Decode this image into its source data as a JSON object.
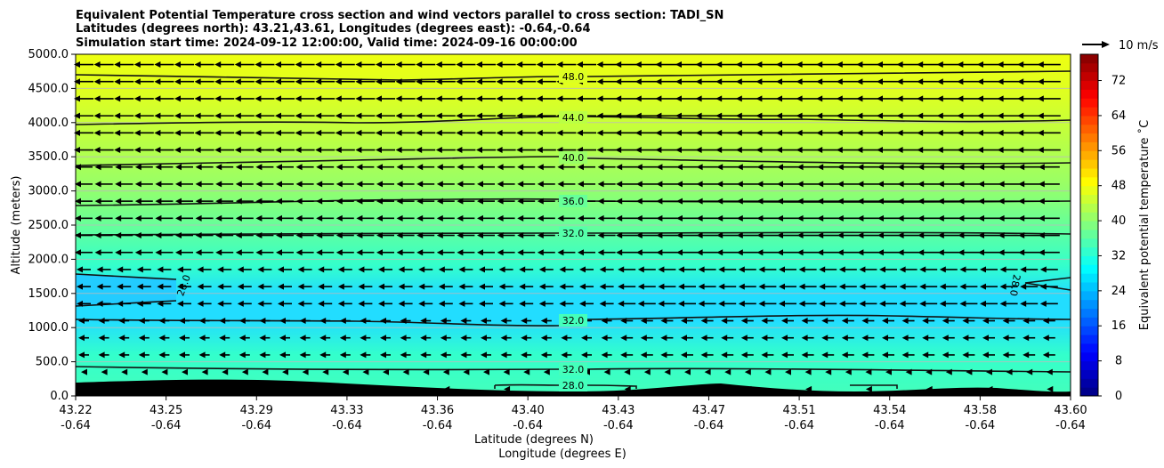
{
  "title_lines": [
    "Equivalent Potential Temperature cross section and wind vectors parallel to cross section: TADI_SN",
    "Latitudes (degrees north): 43.21,43.61, Longitudes (degrees east): -0.64,-0.64",
    "Simulation start time: 2024-09-12 12:00:00, Valid time: 2024-09-16 00:00:00"
  ],
  "quiver_key": "10 m/s",
  "colorbar_label": "Equivalent potential temperature ˚C",
  "xlabel_line1": "Latitude (degrees N)",
  "xlabel_line2": "Longitude (degrees E)",
  "ylabel": "Altitude (meters)",
  "chart_data": {
    "type": "contour",
    "y_ticks": [
      "0.0",
      "500.0",
      "1000.0",
      "1500.0",
      "2000.0",
      "2500.0",
      "3000.0",
      "3500.0",
      "4000.0",
      "4500.0",
      "5000.0"
    ],
    "ylim": [
      0,
      5000
    ],
    "x_tick_lat": [
      "43.22",
      "43.25",
      "43.29",
      "43.33",
      "43.36",
      "43.40",
      "43.43",
      "43.47",
      "43.51",
      "43.54",
      "43.58",
      "43.60"
    ],
    "x_tick_lon": [
      "-0.64",
      "-0.64",
      "-0.64",
      "-0.64",
      "-0.64",
      "-0.64",
      "-0.64",
      "-0.64",
      "-0.64",
      "-0.64",
      "-0.64",
      "-0.64"
    ],
    "colorbar_ticks": [
      "0",
      "8",
      "16",
      "24",
      "32",
      "40",
      "48",
      "56",
      "64",
      "72"
    ],
    "colorbar_range": [
      0,
      78
    ],
    "colormap": "jet",
    "contour_labels": [
      {
        "text": "48.0"
      },
      {
        "text": "44.0"
      },
      {
        "text": "40.0"
      },
      {
        "text": "36.0"
      },
      {
        "text": "32.0"
      },
      {
        "text": "28.0"
      },
      {
        "text": "32.0"
      },
      {
        "text": "32.0"
      },
      {
        "text": "28.0"
      },
      {
        "text": "28.0"
      }
    ],
    "theta_e_profile": [
      {
        "alt": 0,
        "value": 30
      },
      {
        "alt": 300,
        "value": 32
      },
      {
        "alt": 800,
        "value": 33
      },
      {
        "alt": 1400,
        "value": 29
      },
      {
        "alt": 1800,
        "value": 30
      },
      {
        "alt": 2100,
        "value": 32
      },
      {
        "alt": 2500,
        "value": 33
      },
      {
        "alt": 3000,
        "value": 36
      },
      {
        "alt": 3500,
        "value": 40
      },
      {
        "alt": 4000,
        "value": 44
      },
      {
        "alt": 4600,
        "value": 48
      },
      {
        "alt": 5000,
        "value": 51
      }
    ],
    "terrain_color": "#000000",
    "wind_direction": "southward (arrows pointing left)",
    "grid": true
  }
}
